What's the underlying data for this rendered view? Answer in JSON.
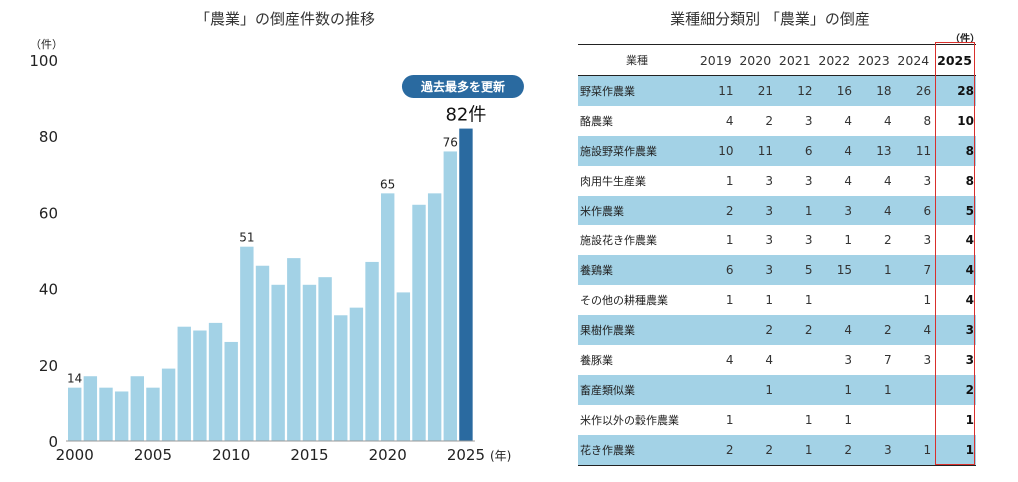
{
  "chart_data": {
    "type": "bar",
    "title": "「農業」の倒産件数の推移",
    "ylabel": "（件）",
    "xlabel": "(年)",
    "ylim": [
      0,
      100
    ],
    "yticks": [
      0,
      20,
      40,
      60,
      80,
      100
    ],
    "xticks": [
      "2000",
      "2005",
      "2010",
      "2015",
      "2020",
      "2025"
    ],
    "categories": [
      2000,
      2001,
      2002,
      2003,
      2004,
      2005,
      2006,
      2007,
      2008,
      2009,
      2010,
      2011,
      2012,
      2013,
      2014,
      2015,
      2016,
      2017,
      2018,
      2019,
      2020,
      2021,
      2022,
      2023,
      2024,
      2025
    ],
    "values": [
      14,
      17,
      14,
      13,
      17,
      14,
      19,
      30,
      29,
      31,
      26,
      51,
      46,
      41,
      48,
      41,
      43,
      33,
      35,
      47,
      65,
      39,
      62,
      65,
      76,
      82
    ],
    "data_labels": {
      "2000": "14",
      "2011": "51",
      "2020": "65",
      "2024": "76",
      "2025": "82件"
    },
    "highlight": {
      "year": 2025,
      "badge": "過去最多を更新"
    },
    "colors": {
      "bar": "#a3d2e6",
      "highlight": "#2a6aa0",
      "badge": "#2a6aa0"
    },
    "grid": false
  },
  "table": {
    "title": "業種細分類別 「農業」の倒産",
    "unit": "（件）",
    "headers": [
      "業種",
      "2019",
      "2020",
      "2021",
      "2022",
      "2023",
      "2024",
      "2025"
    ],
    "rows": [
      [
        "野菜作農業",
        "11",
        "21",
        "12",
        "16",
        "18",
        "26",
        "28"
      ],
      [
        "酪農業",
        "4",
        "2",
        "3",
        "4",
        "4",
        "8",
        "10"
      ],
      [
        "施設野菜作農業",
        "10",
        "11",
        "6",
        "4",
        "13",
        "11",
        "8"
      ],
      [
        "肉用牛生産業",
        "1",
        "3",
        "3",
        "4",
        "4",
        "3",
        "8"
      ],
      [
        "米作農業",
        "2",
        "3",
        "1",
        "3",
        "4",
        "6",
        "5"
      ],
      [
        "施設花き作農業",
        "1",
        "3",
        "3",
        "1",
        "2",
        "3",
        "4"
      ],
      [
        "養鶏業",
        "6",
        "3",
        "5",
        "15",
        "1",
        "7",
        "4"
      ],
      [
        "その他の耕種農業",
        "1",
        "1",
        "1",
        "",
        "",
        "1",
        "4"
      ],
      [
        "果樹作農業",
        "",
        "2",
        "2",
        "4",
        "2",
        "4",
        "3"
      ],
      [
        "養豚業",
        "4",
        "4",
        "",
        "3",
        "7",
        "3",
        "3"
      ],
      [
        "畜産類似業",
        "",
        "1",
        "",
        "1",
        "1",
        "",
        "2"
      ],
      [
        "米作以外の穀作農業",
        "1",
        "",
        "1",
        "1",
        "",
        "",
        "1"
      ],
      [
        "花き作農業",
        "2",
        "2",
        "1",
        "2",
        "3",
        "1",
        "1"
      ]
    ],
    "highlight_color": "#d9302c"
  }
}
